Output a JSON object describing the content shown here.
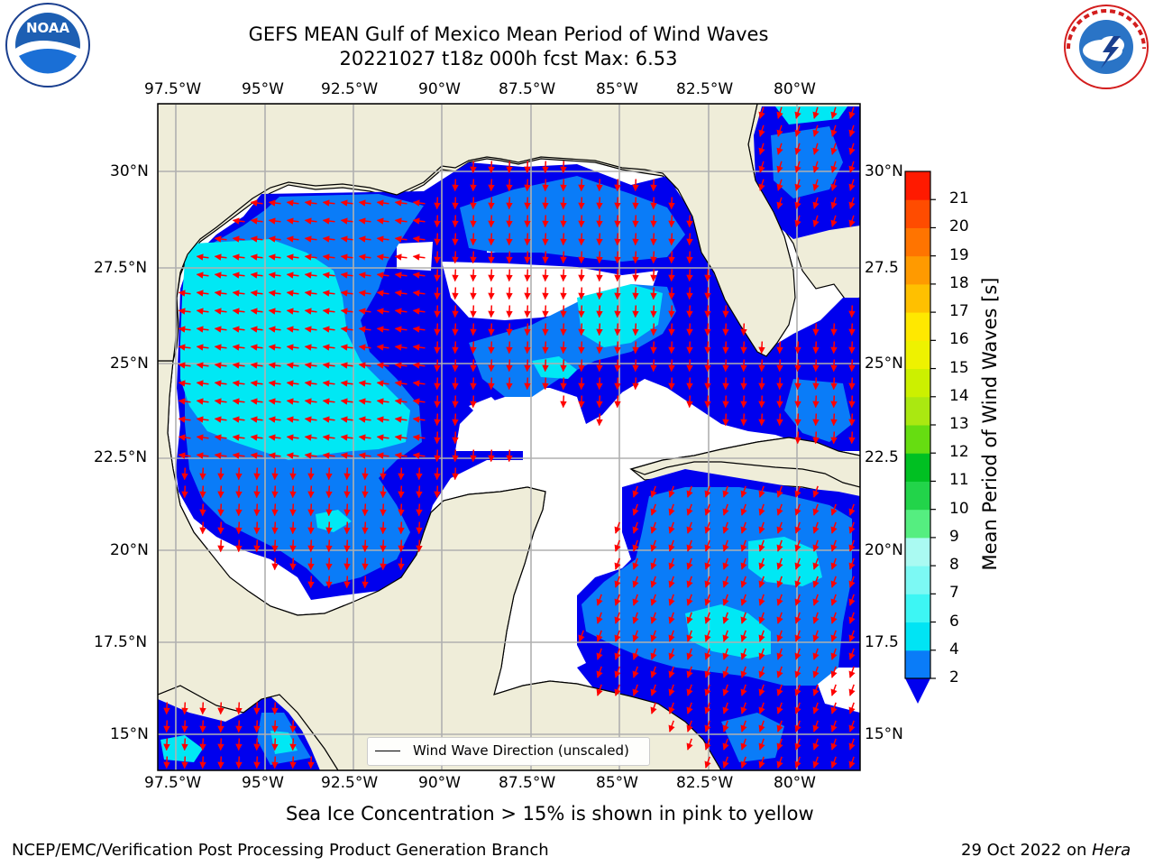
{
  "title": {
    "line1": "GEFS MEAN Gulf of Mexico Mean Period of Wind Waves",
    "line2": "20221027 t18z 000h fcst   Max: 6.53"
  },
  "axes": {
    "lon_labels": [
      "97.5°W",
      "95°W",
      "92.5°W",
      "90°W",
      "87.5°W",
      "85°W",
      "82.5°W",
      "80°W"
    ],
    "lat_labels": [
      "30°N",
      "27.5°N",
      "25°N",
      "22.5°N",
      "20°N",
      "17.5°N",
      "15°N"
    ],
    "lat_labels_right": [
      "30°N",
      "27.5",
      "25°N",
      "22.5",
      "20°N",
      "17.5",
      "15°N"
    ]
  },
  "colorbar": {
    "label": "Mean Period of Wind Waves [s]",
    "ticks": [
      "2",
      "4",
      "6",
      "7",
      "8",
      "9",
      "10",
      "11",
      "12",
      "13",
      "14",
      "15",
      "16",
      "17",
      "18",
      "19",
      "20",
      "21"
    ],
    "colors": [
      "#0a7cf8",
      "#00e4f4",
      "#3df6f4",
      "#7cf9f4",
      "#aafaf2",
      "#55ee80",
      "#22d44a",
      "#00c022",
      "#66dd11",
      "#aae811",
      "#ccf000",
      "#eef200",
      "#ffe800",
      "#ffc000",
      "#ff9a00",
      "#ff7400",
      "#ff4c00",
      "#ff1a00"
    ],
    "extend_color": "#0000ee"
  },
  "map": {
    "land_color": "#efedd9",
    "water_white": "#ffffff",
    "colors": {
      "level_2": "#0000ee",
      "level_4": "#0a7cf8",
      "level_6": "#00e8f4",
      "arrow": "#ff0000"
    }
  },
  "legend": {
    "label": "Wind Wave Direction (unscaled)"
  },
  "ice_note": "Sea Ice Concentration > 15% is shown in pink to yellow",
  "footer": {
    "left": "NCEP/EMC/Verification Post Processing Product Generation Branch",
    "right_date": "29 Oct 2022 on ",
    "right_host": "Hera"
  },
  "logos": {
    "noaa": "NOAA",
    "nws": "NATIONAL WEATHER SERVICE"
  }
}
